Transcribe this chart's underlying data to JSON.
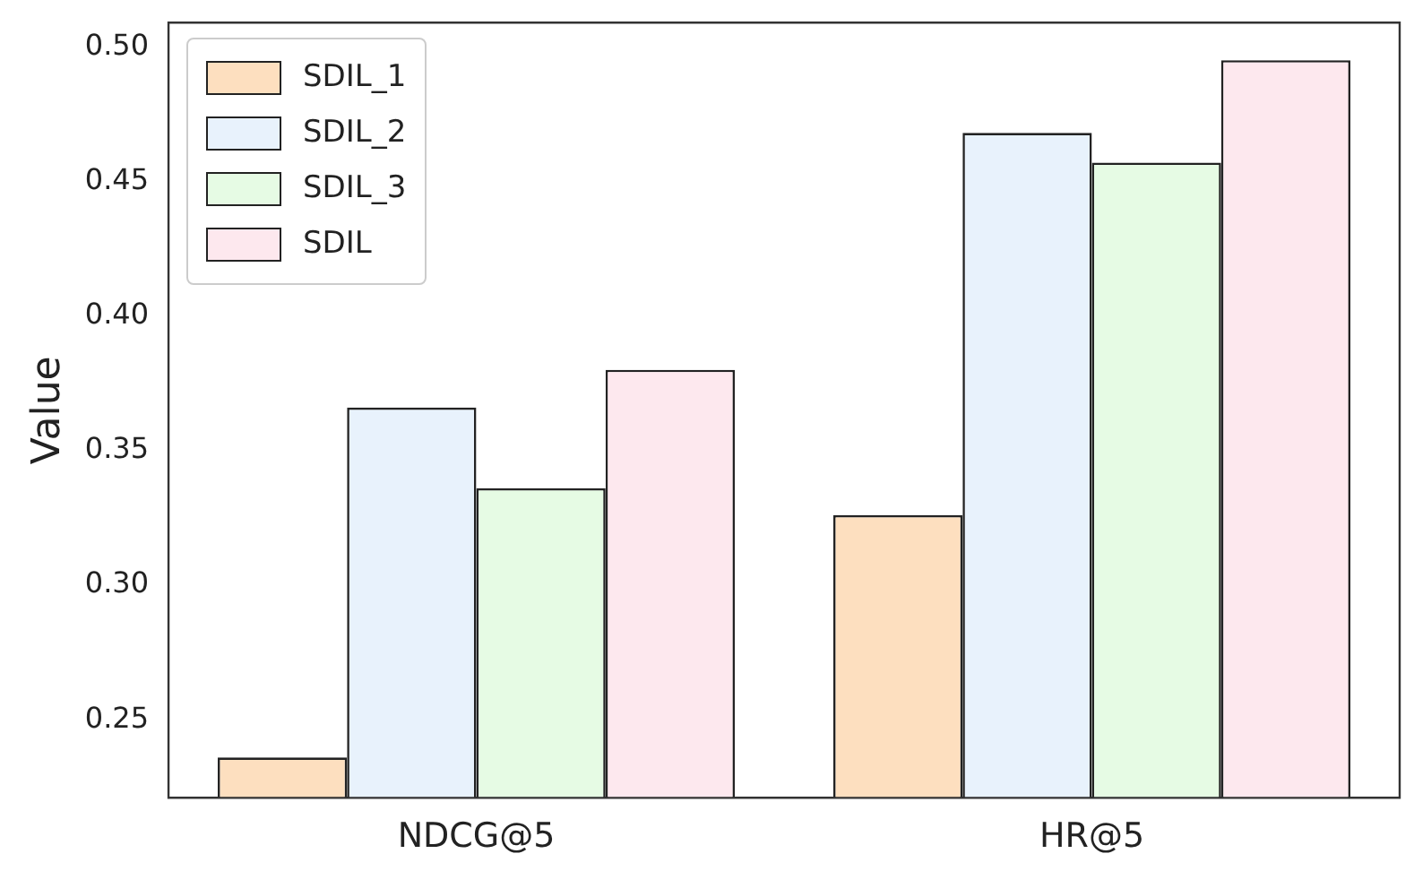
{
  "chart_data": {
    "type": "bar",
    "ylabel": "Value",
    "categories": [
      "NDCG@5",
      "HR@5"
    ],
    "series": [
      {
        "name": "SDIL_1",
        "color": "#fddfbf",
        "values": [
          0.236,
          0.326
        ]
      },
      {
        "name": "SDIL_2",
        "color": "#e8f2fc",
        "values": [
          0.366,
          0.468
        ]
      },
      {
        "name": "SDIL_3",
        "color": "#e6fbe4",
        "values": [
          0.336,
          0.457
        ]
      },
      {
        "name": "SDIL",
        "color": "#fde8ee",
        "values": [
          0.38,
          0.495
        ]
      }
    ],
    "ylim": [
      0.221,
      0.509
    ],
    "yticks": [
      {
        "value": 0.25,
        "label": "0.25"
      },
      {
        "value": 0.3,
        "label": "0.30"
      },
      {
        "value": 0.35,
        "label": "0.35"
      },
      {
        "value": 0.4,
        "label": "0.40"
      },
      {
        "value": 0.45,
        "label": "0.45"
      },
      {
        "value": 0.5,
        "label": "0.50"
      }
    ],
    "grid": false,
    "legend": "top left"
  }
}
